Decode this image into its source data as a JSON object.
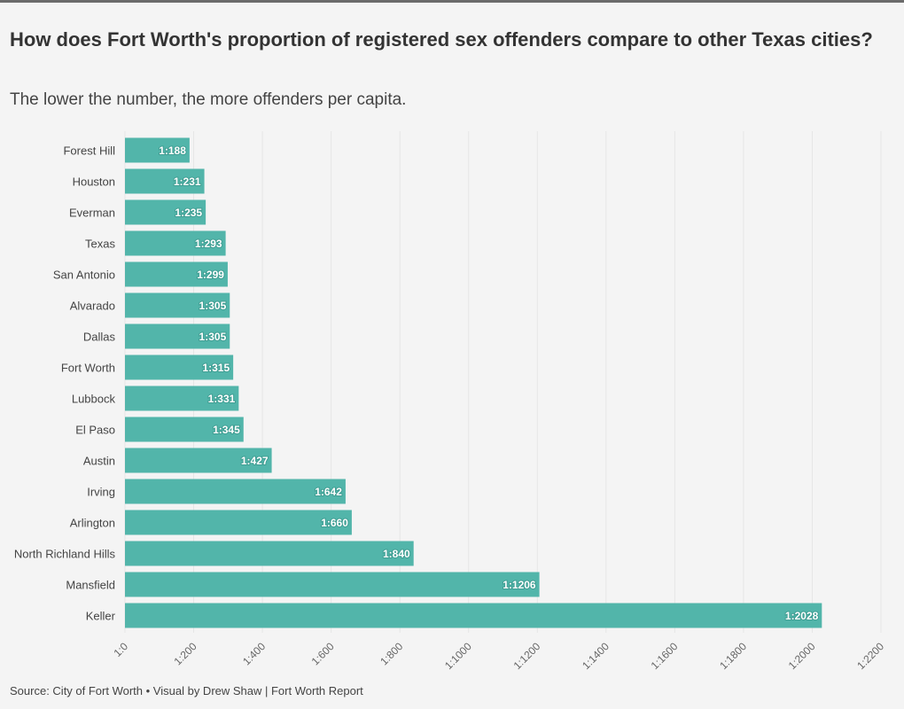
{
  "title": "How does Fort Worth's proportion of registered sex offenders compare to other Texas cities?",
  "subtitle": "The lower the number, the more offenders per capita.",
  "source": "Source: City of Fort Worth • Visual by Drew Shaw | Fort Worth Report",
  "colors": {
    "bar": "#52b5aa",
    "grid": "#e6e6e6",
    "background": "#f4f4f4",
    "topbar": "#6b6b6b"
  },
  "chart_data": {
    "type": "bar",
    "orientation": "horizontal",
    "title": "How does Fort Worth's proportion of registered sex offenders compare to other Texas cities?",
    "subtitle": "The lower the number, the more offenders per capita.",
    "xlabel": "",
    "ylabel": "",
    "xlim": [
      0,
      2200
    ],
    "grid": true,
    "value_prefix": "1:",
    "categories": [
      "Forest Hill",
      "Houston",
      "Everman",
      "Texas",
      "San Antonio",
      "Alvarado",
      "Dallas",
      "Fort Worth",
      "Lubbock",
      "El Paso",
      "Austin",
      "Irving",
      "Arlington",
      "North Richland Hills",
      "Mansfield",
      "Keller"
    ],
    "values": [
      188,
      231,
      235,
      293,
      299,
      305,
      305,
      315,
      331,
      345,
      427,
      642,
      660,
      840,
      1206,
      2028
    ],
    "data_labels": [
      "1:188",
      "1:231",
      "1:235",
      "1:293",
      "1:299",
      "1:305",
      "1:305",
      "1:315",
      "1:331",
      "1:345",
      "1:427",
      "1:642",
      "1:660",
      "1:840",
      "1:1206",
      "1:2028"
    ],
    "x_ticks": [
      0,
      200,
      400,
      600,
      800,
      1000,
      1200,
      1400,
      1600,
      1800,
      2000,
      2200
    ],
    "x_tick_labels": [
      "1:0",
      "1:200",
      "1:400",
      "1:600",
      "1:800",
      "1:1000",
      "1:1200",
      "1:1400",
      "1:1600",
      "1:1800",
      "1:2000",
      "1:2200"
    ]
  }
}
